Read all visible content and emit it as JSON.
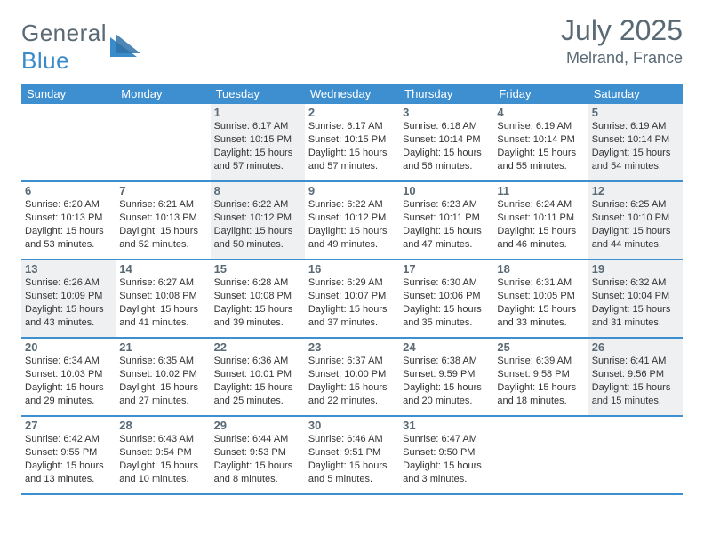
{
  "colors": {
    "brand_gray": "#5a6a75",
    "brand_blue": "#3a8bc9",
    "header_bar": "#3e8fd0",
    "row_border": "#3e8fd0",
    "shade_bg": "#eef0f2",
    "text": "#333333",
    "bg": "#ffffff"
  },
  "fonts": {
    "month_size": 32,
    "location_size": 18,
    "weekday_size": 13,
    "daynum_size": 13,
    "info_size": 11
  },
  "logo": {
    "text1": "General",
    "text2": "Blue"
  },
  "title": {
    "month": "July 2025",
    "location": "Melrand, France"
  },
  "weekdays": [
    "Sunday",
    "Monday",
    "Tuesday",
    "Wednesday",
    "Thursday",
    "Friday",
    "Saturday"
  ],
  "calendar": {
    "type": "calendar-grid",
    "first_weekday_index_of_1st": 2,
    "days": [
      {
        "n": 1,
        "shade": true,
        "sunrise": "6:17 AM",
        "sunset": "10:15 PM",
        "daylight": "15 hours and 57 minutes."
      },
      {
        "n": 2,
        "shade": false,
        "sunrise": "6:17 AM",
        "sunset": "10:15 PM",
        "daylight": "15 hours and 57 minutes."
      },
      {
        "n": 3,
        "shade": false,
        "sunrise": "6:18 AM",
        "sunset": "10:14 PM",
        "daylight": "15 hours and 56 minutes."
      },
      {
        "n": 4,
        "shade": false,
        "sunrise": "6:19 AM",
        "sunset": "10:14 PM",
        "daylight": "15 hours and 55 minutes."
      },
      {
        "n": 5,
        "shade": true,
        "sunrise": "6:19 AM",
        "sunset": "10:14 PM",
        "daylight": "15 hours and 54 minutes."
      },
      {
        "n": 6,
        "shade": false,
        "sunrise": "6:20 AM",
        "sunset": "10:13 PM",
        "daylight": "15 hours and 53 minutes."
      },
      {
        "n": 7,
        "shade": false,
        "sunrise": "6:21 AM",
        "sunset": "10:13 PM",
        "daylight": "15 hours and 52 minutes."
      },
      {
        "n": 8,
        "shade": true,
        "sunrise": "6:22 AM",
        "sunset": "10:12 PM",
        "daylight": "15 hours and 50 minutes."
      },
      {
        "n": 9,
        "shade": false,
        "sunrise": "6:22 AM",
        "sunset": "10:12 PM",
        "daylight": "15 hours and 49 minutes."
      },
      {
        "n": 10,
        "shade": false,
        "sunrise": "6:23 AM",
        "sunset": "10:11 PM",
        "daylight": "15 hours and 47 minutes."
      },
      {
        "n": 11,
        "shade": false,
        "sunrise": "6:24 AM",
        "sunset": "10:11 PM",
        "daylight": "15 hours and 46 minutes."
      },
      {
        "n": 12,
        "shade": true,
        "sunrise": "6:25 AM",
        "sunset": "10:10 PM",
        "daylight": "15 hours and 44 minutes."
      },
      {
        "n": 13,
        "shade": true,
        "sunrise": "6:26 AM",
        "sunset": "10:09 PM",
        "daylight": "15 hours and 43 minutes."
      },
      {
        "n": 14,
        "shade": false,
        "sunrise": "6:27 AM",
        "sunset": "10:08 PM",
        "daylight": "15 hours and 41 minutes."
      },
      {
        "n": 15,
        "shade": false,
        "sunrise": "6:28 AM",
        "sunset": "10:08 PM",
        "daylight": "15 hours and 39 minutes."
      },
      {
        "n": 16,
        "shade": false,
        "sunrise": "6:29 AM",
        "sunset": "10:07 PM",
        "daylight": "15 hours and 37 minutes."
      },
      {
        "n": 17,
        "shade": false,
        "sunrise": "6:30 AM",
        "sunset": "10:06 PM",
        "daylight": "15 hours and 35 minutes."
      },
      {
        "n": 18,
        "shade": false,
        "sunrise": "6:31 AM",
        "sunset": "10:05 PM",
        "daylight": "15 hours and 33 minutes."
      },
      {
        "n": 19,
        "shade": true,
        "sunrise": "6:32 AM",
        "sunset": "10:04 PM",
        "daylight": "15 hours and 31 minutes."
      },
      {
        "n": 20,
        "shade": false,
        "sunrise": "6:34 AM",
        "sunset": "10:03 PM",
        "daylight": "15 hours and 29 minutes."
      },
      {
        "n": 21,
        "shade": false,
        "sunrise": "6:35 AM",
        "sunset": "10:02 PM",
        "daylight": "15 hours and 27 minutes."
      },
      {
        "n": 22,
        "shade": false,
        "sunrise": "6:36 AM",
        "sunset": "10:01 PM",
        "daylight": "15 hours and 25 minutes."
      },
      {
        "n": 23,
        "shade": false,
        "sunrise": "6:37 AM",
        "sunset": "10:00 PM",
        "daylight": "15 hours and 22 minutes."
      },
      {
        "n": 24,
        "shade": false,
        "sunrise": "6:38 AM",
        "sunset": "9:59 PM",
        "daylight": "15 hours and 20 minutes."
      },
      {
        "n": 25,
        "shade": false,
        "sunrise": "6:39 AM",
        "sunset": "9:58 PM",
        "daylight": "15 hours and 18 minutes."
      },
      {
        "n": 26,
        "shade": true,
        "sunrise": "6:41 AM",
        "sunset": "9:56 PM",
        "daylight": "15 hours and 15 minutes."
      },
      {
        "n": 27,
        "shade": false,
        "sunrise": "6:42 AM",
        "sunset": "9:55 PM",
        "daylight": "15 hours and 13 minutes."
      },
      {
        "n": 28,
        "shade": false,
        "sunrise": "6:43 AM",
        "sunset": "9:54 PM",
        "daylight": "15 hours and 10 minutes."
      },
      {
        "n": 29,
        "shade": false,
        "sunrise": "6:44 AM",
        "sunset": "9:53 PM",
        "daylight": "15 hours and 8 minutes."
      },
      {
        "n": 30,
        "shade": false,
        "sunrise": "6:46 AM",
        "sunset": "9:51 PM",
        "daylight": "15 hours and 5 minutes."
      },
      {
        "n": 31,
        "shade": false,
        "sunrise": "6:47 AM",
        "sunset": "9:50 PM",
        "daylight": "15 hours and 3 minutes."
      }
    ]
  },
  "labels": {
    "sunrise": "Sunrise: ",
    "sunset": "Sunset: ",
    "daylight": "Daylight: "
  }
}
